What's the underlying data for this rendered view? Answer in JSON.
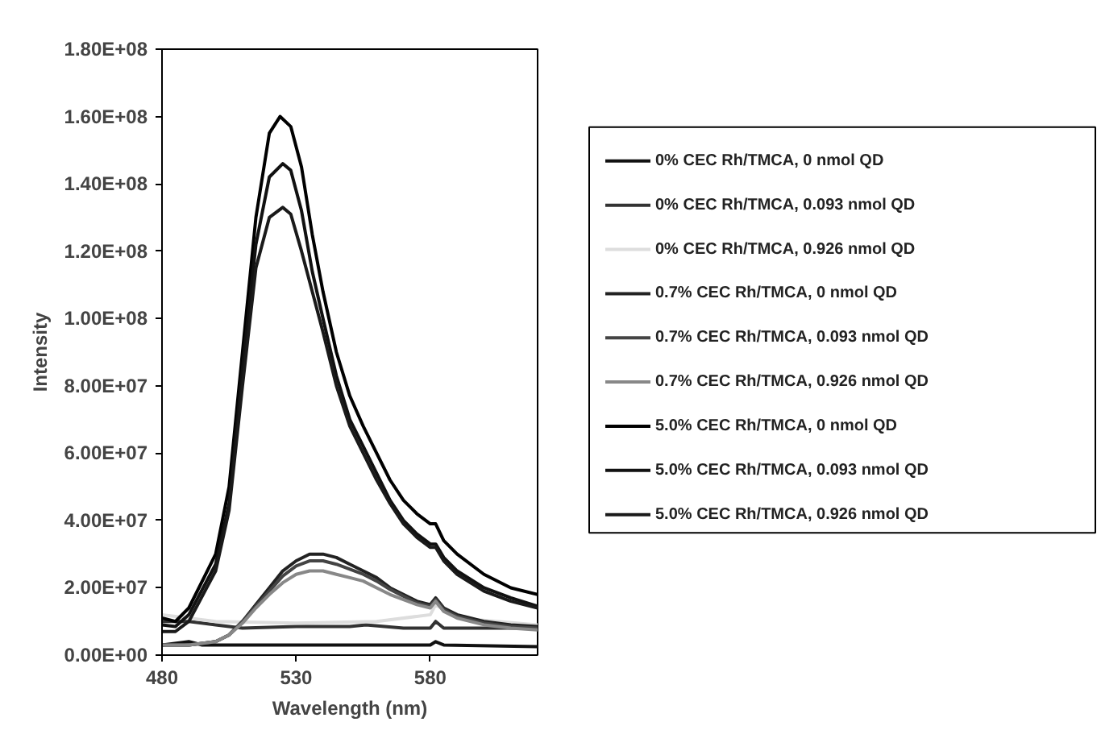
{
  "chart_data": {
    "type": "line",
    "xlabel": "Wavelength (nm)",
    "ylabel": "Intensity",
    "xlim": [
      480,
      620
    ],
    "ylim": [
      0,
      180000000
    ],
    "xticks": [
      480,
      530,
      580
    ],
    "yticks": [
      {
        "value": 0,
        "label": "0.00E+00"
      },
      {
        "value": 20000000,
        "label": "2.00E+07"
      },
      {
        "value": 40000000,
        "label": "4.00E+07"
      },
      {
        "value": 60000000,
        "label": "6.00E+07"
      },
      {
        "value": 80000000,
        "label": "8.00E+07"
      },
      {
        "value": 100000000,
        "label": "1.00E+08"
      },
      {
        "value": 120000000,
        "label": "1.20E+08"
      },
      {
        "value": 140000000,
        "label": "1.40E+08"
      },
      {
        "value": 160000000,
        "label": "1.60E+08"
      },
      {
        "value": 180000000,
        "label": "1.80E+08"
      }
    ],
    "grid": false,
    "legend": "right",
    "marker": "none",
    "line_style": "solid",
    "series": [
      {
        "name": "0% CEC Rh/TMCA, 0 nmol QD",
        "color": "#111111",
        "x": [
          480,
          490,
          495,
          520,
          580,
          582,
          585,
          620
        ],
        "values": [
          3000000,
          4000000,
          3000000,
          3000000,
          3000000,
          4000000,
          3000000,
          2500000
        ]
      },
      {
        "name": "0% CEC Rh/TMCA, 0.093 nmol QD",
        "color": "#333333",
        "x": [
          480,
          490,
          500,
          510,
          530,
          550,
          556,
          570,
          580,
          582,
          585,
          600,
          620
        ],
        "values": [
          10000000,
          10000000,
          9000000,
          8000000,
          8500000,
          8500000,
          9000000,
          8000000,
          8000000,
          10000000,
          8000000,
          8000000,
          8000000
        ]
      },
      {
        "name": "0% CEC Rh/TMCA, 0.926 nmol QD",
        "color": "#dddddd",
        "x": [
          480,
          500,
          530,
          560,
          580,
          582,
          590,
          620
        ],
        "values": [
          12000000,
          10000000,
          9500000,
          10000000,
          12000000,
          15000000,
          11000000,
          9000000
        ]
      },
      {
        "name": "0.7% CEC Rh/TMCA, 0 nmol QD",
        "color": "#222222",
        "x": [
          480,
          490,
          500,
          505,
          510,
          515,
          520,
          525,
          530,
          535,
          540,
          545,
          550,
          555,
          560,
          565,
          570,
          575,
          580,
          582,
          585,
          590,
          600,
          610,
          620
        ],
        "values": [
          3000000,
          3000000,
          4000000,
          6000000,
          10000000,
          15000000,
          20000000,
          25000000,
          28000000,
          30000000,
          30000000,
          29000000,
          27000000,
          25000000,
          23000000,
          20000000,
          18000000,
          16000000,
          15000000,
          17000000,
          14000000,
          12000000,
          10000000,
          9000000,
          8500000
        ]
      },
      {
        "name": "0.7% CEC Rh/TMCA, 0.093 nmol QD",
        "color": "#444444",
        "x": [
          480,
          490,
          500,
          505,
          510,
          515,
          520,
          525,
          530,
          535,
          540,
          545,
          550,
          555,
          560,
          565,
          570,
          575,
          580,
          582,
          585,
          590,
          600,
          610,
          620
        ],
        "values": [
          3000000,
          3000000,
          4000000,
          6000000,
          10000000,
          14500000,
          19000000,
          23500000,
          26500000,
          28000000,
          28000000,
          27000000,
          25500000,
          24000000,
          22000000,
          19500000,
          17500000,
          15500000,
          14500000,
          16500000,
          13500000,
          11500000,
          9500000,
          8500000,
          8000000
        ]
      },
      {
        "name": "0.7% CEC Rh/TMCA, 0.926 nmol QD",
        "color": "#888888",
        "x": [
          480,
          490,
          500,
          505,
          510,
          515,
          520,
          525,
          530,
          535,
          540,
          545,
          550,
          555,
          560,
          565,
          570,
          575,
          580,
          582,
          585,
          590,
          600,
          610,
          620
        ],
        "values": [
          3000000,
          3000000,
          4000000,
          6000000,
          9500000,
          14000000,
          18000000,
          21500000,
          24000000,
          25000000,
          25000000,
          24000000,
          23000000,
          22000000,
          20000000,
          18000000,
          16500000,
          15000000,
          14000000,
          16000000,
          13000000,
          11000000,
          9000000,
          8000000,
          7500000
        ]
      },
      {
        "name": "5.0% CEC Rh/TMCA, 0 nmol QD",
        "color": "#000000",
        "x": [
          480,
          485,
          490,
          500,
          505,
          510,
          515,
          520,
          524,
          528,
          532,
          536,
          540,
          545,
          550,
          555,
          560,
          565,
          570,
          575,
          580,
          582,
          585,
          590,
          600,
          610,
          620
        ],
        "values": [
          11000000,
          10000000,
          14000000,
          30000000,
          50000000,
          90000000,
          130000000,
          155000000,
          160000000,
          157000000,
          145000000,
          125000000,
          108000000,
          90000000,
          77000000,
          68000000,
          60000000,
          52000000,
          46000000,
          42000000,
          39000000,
          39000000,
          34000000,
          30000000,
          24000000,
          20000000,
          18000000
        ]
      },
      {
        "name": "5.0% CEC Rh/TMCA, 0.093 nmol QD",
        "color": "#111111",
        "x": [
          480,
          485,
          490,
          500,
          505,
          510,
          515,
          520,
          525,
          528,
          532,
          536,
          540,
          545,
          550,
          555,
          560,
          565,
          570,
          575,
          580,
          582,
          585,
          590,
          600,
          610,
          620
        ],
        "values": [
          9000000,
          8500000,
          12000000,
          27000000,
          45000000,
          85000000,
          122000000,
          142000000,
          146000000,
          144000000,
          132000000,
          114000000,
          100000000,
          83000000,
          70000000,
          62000000,
          54000000,
          46000000,
          40000000,
          36000000,
          33000000,
          33000000,
          29000000,
          25000000,
          20000000,
          17000000,
          14500000
        ]
      },
      {
        "name": "5.0% CEC Rh/TMCA, 0.926 nmol QD",
        "color": "#1a1a1a",
        "x": [
          480,
          485,
          490,
          500,
          505,
          510,
          515,
          520,
          525,
          528,
          532,
          536,
          540,
          545,
          550,
          555,
          560,
          565,
          570,
          575,
          580,
          582,
          585,
          590,
          600,
          610,
          620
        ],
        "values": [
          7000000,
          7000000,
          10000000,
          25000000,
          43000000,
          80000000,
          115000000,
          130000000,
          133000000,
          131000000,
          120000000,
          108000000,
          96000000,
          80000000,
          68000000,
          60000000,
          52000000,
          45000000,
          39000000,
          35000000,
          32000000,
          32000000,
          28000000,
          24000000,
          19000000,
          16000000,
          14000000
        ]
      }
    ]
  }
}
